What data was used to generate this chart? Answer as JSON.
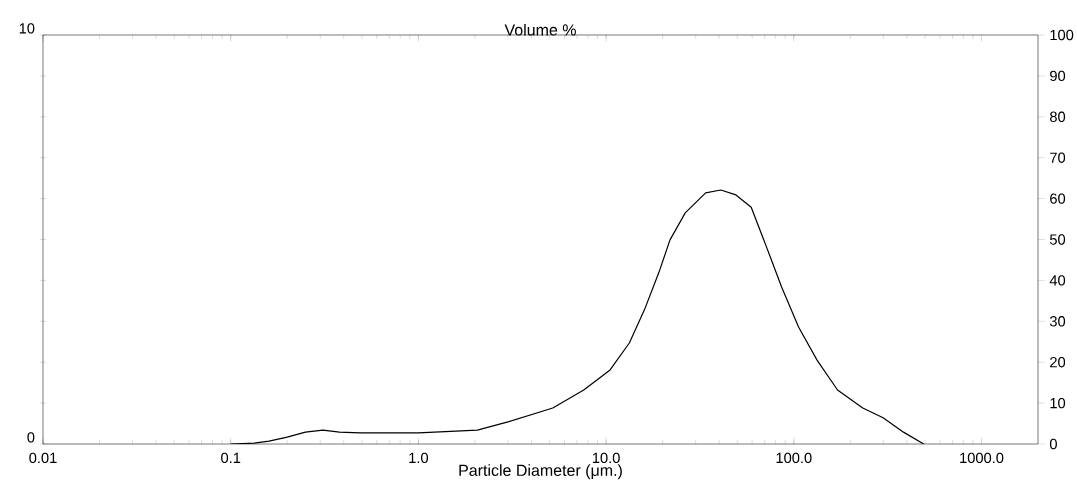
{
  "chart_data": {
    "type": "line",
    "title": "Volume %",
    "xlabel": "Particle Diameter (μm.)",
    "log": "x",
    "grid": false,
    "legend": false,
    "marker": "none",
    "line_style": "solid",
    "xlim": [
      0.01,
      2000
    ],
    "ylim": [
      0,
      10
    ],
    "y2lim": [
      0,
      100
    ],
    "xticks": [
      {
        "value": 0.01,
        "label": "0.01"
      },
      {
        "value": 0.1,
        "label": "0.1"
      },
      {
        "value": 1,
        "label": "1.0"
      },
      {
        "value": 10,
        "label": "10.0"
      },
      {
        "value": 100,
        "label": "100.0"
      },
      {
        "value": 1000,
        "label": "1000.0"
      }
    ],
    "yticks": [
      0,
      {
        "value": 1,
        "label": null
      },
      {
        "value": 2,
        "label": null
      },
      {
        "value": 3,
        "label": null
      },
      {
        "value": 4,
        "label": null
      },
      {
        "value": 5,
        "label": null
      },
      {
        "value": 6,
        "label": null
      },
      {
        "value": 7,
        "label": null
      },
      {
        "value": 8,
        "label": null
      },
      {
        "value": 9,
        "label": null
      },
      10
    ],
    "y2ticks": [
      0,
      10,
      20,
      30,
      40,
      50,
      60,
      70,
      80,
      90,
      100
    ],
    "series": [
      {
        "color": "#000000",
        "x": [
          0.1,
          0.133,
          0.16,
          0.2,
          0.25,
          0.31,
          0.38,
          0.49,
          0.81,
          1.0,
          2.06,
          3.0,
          5.2,
          7.6,
          10.5,
          13.3,
          16,
          19.3,
          21.9,
          26.4,
          33.9,
          40.8,
          49.2,
          59.3,
          71.5,
          86.1,
          106,
          133,
          171,
          233,
          299,
          384,
          492
        ],
        "values": [
          0,
          0.02,
          0.07,
          0.17,
          0.29,
          0.34,
          0.29,
          0.27,
          0.27,
          0.27,
          0.34,
          0.54,
          0.88,
          1.32,
          1.81,
          2.47,
          3.28,
          4.25,
          4.99,
          5.65,
          6.14,
          6.21,
          6.09,
          5.79,
          4.82,
          3.84,
          2.86,
          2.05,
          1.32,
          0.88,
          0.64,
          0.29,
          0
        ]
      }
    ]
  }
}
